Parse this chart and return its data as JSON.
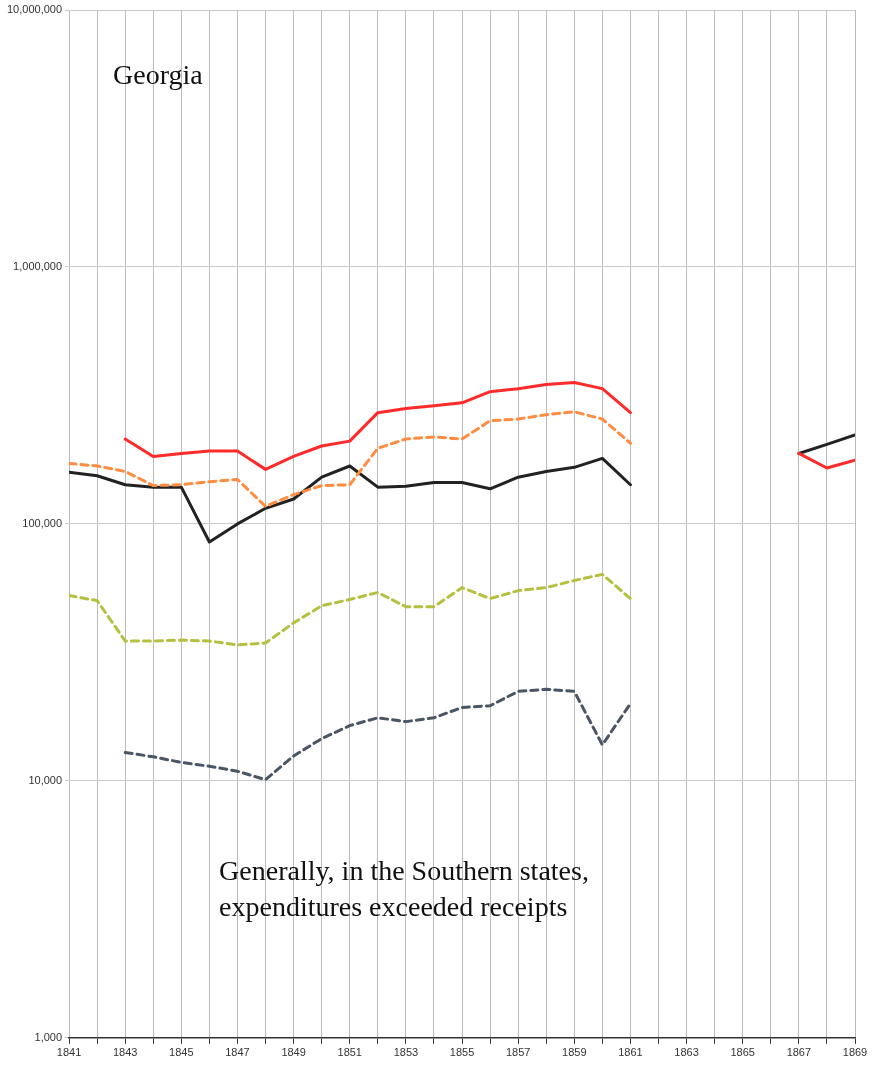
{
  "chart_data": {
    "type": "line",
    "title": "Georgia",
    "annotations": [
      "Generally, in the Southern states, expenditures exceeded receipts"
    ],
    "x": [
      1841,
      1842,
      1843,
      1844,
      1845,
      1846,
      1847,
      1848,
      1849,
      1850,
      1851,
      1852,
      1853,
      1854,
      1855,
      1856,
      1857,
      1858,
      1859,
      1860,
      1861,
      1862,
      1863,
      1864,
      1865,
      1866,
      1867,
      1868,
      1869
    ],
    "series": [
      {
        "color": "#ff2a2a",
        "line_style": "solid",
        "values": [
          null,
          null,
          214000,
          183000,
          188000,
          192000,
          192000,
          163000,
          183000,
          201000,
          210000,
          271000,
          281000,
          288000,
          296000,
          327000,
          336000,
          349000,
          355000,
          336000,
          271000,
          null,
          null,
          null,
          null,
          null,
          188000,
          165000,
          177000
        ]
      },
      {
        "color": "#ff8c40",
        "line_style": "dashed",
        "values": [
          172000,
          168000,
          160000,
          141000,
          142000,
          146000,
          149000,
          117000,
          130000,
          141000,
          142000,
          197000,
          214000,
          218000,
          214000,
          252000,
          256000,
          266000,
          273000,
          256000,
          206000,
          null,
          null,
          null,
          null,
          null,
          null,
          null,
          null
        ]
      },
      {
        "color": "#222222",
        "line_style": "solid",
        "values": [
          159000,
          154000,
          142000,
          139000,
          139000,
          85000,
          100000,
          115000,
          125000,
          152000,
          168000,
          139000,
          140000,
          145000,
          145000,
          137000,
          152000,
          160000,
          166000,
          180000,
          142000,
          null,
          null,
          null,
          null,
          null,
          188000,
          204000,
          222000
        ]
      },
      {
        "color": "#b5c040",
        "line_style": "dashed",
        "values": [
          52600,
          50300,
          35000,
          35000,
          35300,
          35000,
          33800,
          34400,
          41200,
          48000,
          50800,
          54100,
          47600,
          47600,
          56500,
          51200,
          55000,
          56500,
          60200,
          63600,
          51200,
          null,
          null,
          null,
          null,
          null,
          null,
          null,
          null
        ]
      },
      {
        "color": "#4a5566",
        "line_style": "dashed",
        "values": [
          null,
          null,
          12900,
          12400,
          11800,
          11400,
          10900,
          10100,
          12500,
          14600,
          16400,
          17600,
          17000,
          17600,
          19300,
          19600,
          22300,
          22700,
          22300,
          13800,
          20000,
          null,
          null,
          null,
          null,
          null,
          null,
          null,
          null
        ]
      }
    ],
    "xlim": [
      1841,
      1869
    ],
    "xticks": [
      1841,
      {
        "value": 1842,
        "label": null
      },
      1843,
      {
        "value": 1844,
        "label": null
      },
      1845,
      {
        "value": 1846,
        "label": null
      },
      1847,
      {
        "value": 1848,
        "label": null
      },
      1849,
      {
        "value": 1850,
        "label": null
      },
      1851,
      {
        "value": 1852,
        "label": null
      },
      1853,
      {
        "value": 1854,
        "label": null
      },
      1855,
      {
        "value": 1856,
        "label": null
      },
      1857,
      {
        "value": 1858,
        "label": null
      },
      1859,
      {
        "value": 1860,
        "label": null
      },
      1861,
      {
        "value": 1862,
        "label": null
      },
      1863,
      {
        "value": 1864,
        "label": null
      },
      1865,
      {
        "value": 1866,
        "label": null
      },
      1867,
      {
        "value": 1868,
        "label": null
      },
      1869
    ],
    "ylim": [
      1000,
      10000000
    ],
    "yticks": [
      {
        "value": 1000,
        "label": "1,000"
      },
      {
        "value": 10000,
        "label": "10,000"
      },
      {
        "value": 100000,
        "label": "100,000"
      },
      {
        "value": 1000000,
        "label": "1,000,000"
      },
      {
        "value": 10000000,
        "label": "10,000,000"
      }
    ],
    "log": "y",
    "grid": true,
    "legend": false,
    "marker": "none"
  }
}
